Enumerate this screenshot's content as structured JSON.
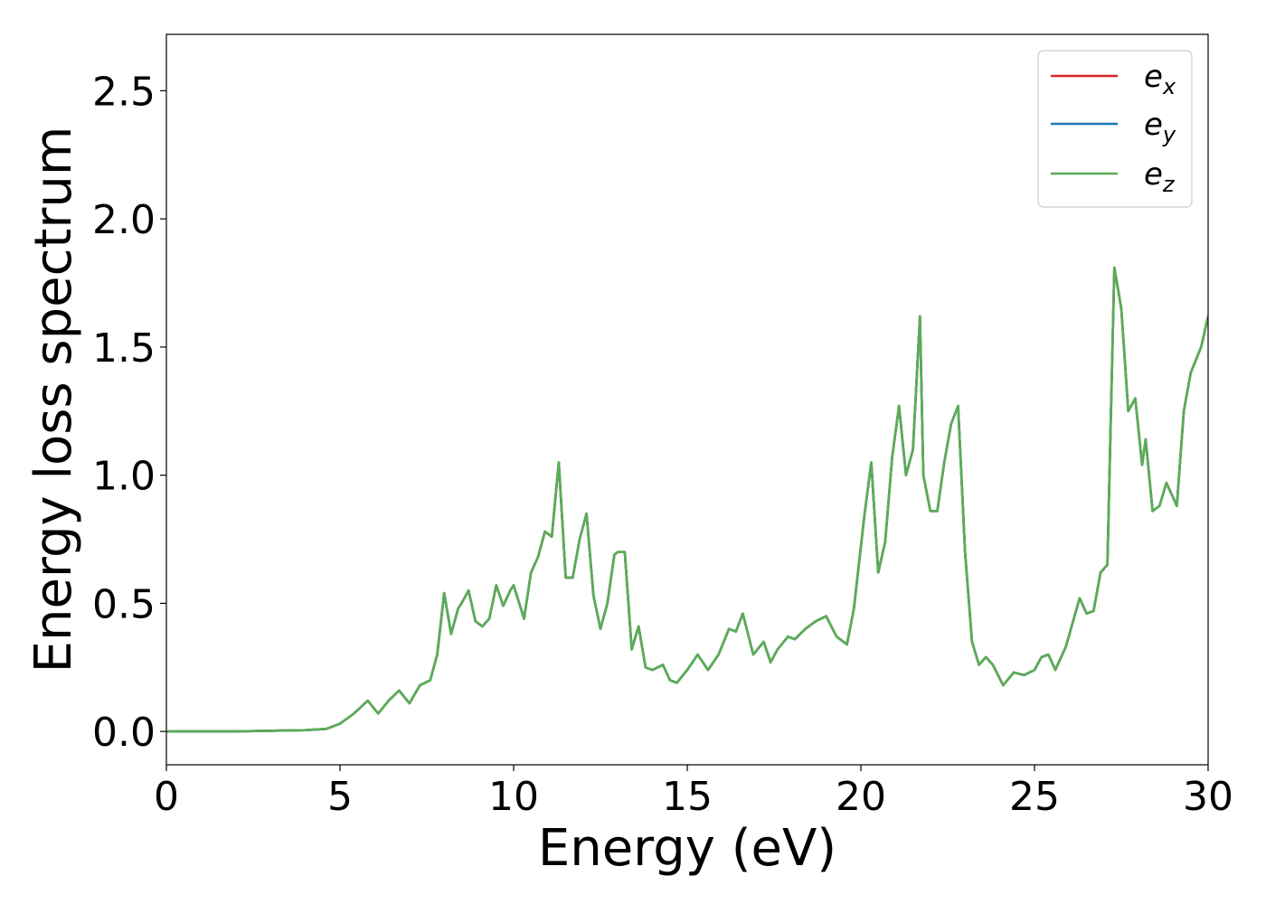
{
  "chart_data": {
    "type": "line",
    "xlabel": "Energy (eV)",
    "ylabel": "Energy loss spectrum",
    "xlim": [
      0,
      30
    ],
    "ylim": [
      -0.13,
      2.72
    ],
    "xticks": [
      0,
      5,
      10,
      15,
      20,
      25,
      30
    ],
    "xtick_labels": [
      "0",
      "5",
      "10",
      "15",
      "20",
      "25",
      "30"
    ],
    "yticks": [
      0.0,
      0.5,
      1.0,
      1.5,
      2.0,
      2.5
    ],
    "ytick_labels": [
      "0.0",
      "0.5",
      "1.0",
      "1.5",
      "2.0",
      "2.5"
    ],
    "grid": false,
    "legend_position": "top-right",
    "series": [
      {
        "name": "e_x",
        "legend_base": "e",
        "legend_sub": "x",
        "color": "#d62728",
        "x": [
          0,
          2,
          4,
          4.6,
          5,
          5.4,
          5.8,
          6.1,
          6.4,
          6.7,
          7,
          7.3,
          7.6,
          7.8,
          8,
          8.2,
          8.4,
          8.5,
          8.7,
          8.9,
          9.1,
          9.3,
          9.5,
          9.7,
          9.9,
          10,
          10.3,
          10.5,
          10.7,
          10.9,
          11.1,
          11.3,
          11.5,
          11.7,
          11.9,
          12.1,
          12.3,
          12.5,
          12.7,
          12.9,
          13,
          13.2,
          13.4,
          13.6,
          13.8,
          14,
          14.3,
          14.5,
          14.7,
          15,
          15.3,
          15.6,
          15.9,
          16.2,
          16.4,
          16.6,
          16.9,
          17.2,
          17.4,
          17.6,
          17.9,
          18.1,
          18.4,
          18.7,
          19,
          19.3,
          19.6,
          19.8,
          20.1,
          20.3,
          20.5,
          20.7,
          20.9,
          21.1,
          21.3,
          21.5,
          21.7,
          21.8,
          22,
          22.2,
          22.4,
          22.6,
          22.8,
          23,
          23.2,
          23.4,
          23.6,
          23.8,
          24.1,
          24.4,
          24.7,
          25,
          25.2,
          25.4,
          25.6,
          25.9,
          26.3,
          26.5,
          26.7,
          26.9,
          27.1,
          27.3,
          27.5,
          27.7,
          27.9,
          28.1,
          28.2,
          28.4,
          28.6,
          28.8,
          29.1,
          29.3,
          29.5,
          29.8,
          30
        ],
        "y": [
          0,
          0,
          0.005,
          0.01,
          0.03,
          0.07,
          0.12,
          0.07,
          0.12,
          0.16,
          0.11,
          0.18,
          0.2,
          0.3,
          0.54,
          0.38,
          0.48,
          0.5,
          0.55,
          0.43,
          0.41,
          0.44,
          0.57,
          0.49,
          0.55,
          0.57,
          0.44,
          0.62,
          0.68,
          0.78,
          0.76,
          1.05,
          0.6,
          0.6,
          0.75,
          0.85,
          0.53,
          0.4,
          0.5,
          0.69,
          0.7,
          0.7,
          0.32,
          0.41,
          0.25,
          0.24,
          0.26,
          0.2,
          0.19,
          0.24,
          0.3,
          0.24,
          0.3,
          0.4,
          0.39,
          0.46,
          0.3,
          0.35,
          0.27,
          0.32,
          0.37,
          0.36,
          0.4,
          0.43,
          0.45,
          0.37,
          0.34,
          0.48,
          0.84,
          1.05,
          0.62,
          0.74,
          1.07,
          1.27,
          1.0,
          1.1,
          1.62,
          1.0,
          0.86,
          0.86,
          1.05,
          1.2,
          1.27,
          0.7,
          0.35,
          0.26,
          0.29,
          0.26,
          0.18,
          0.23,
          0.22,
          0.24,
          0.29,
          0.3,
          0.24,
          0.33,
          0.52,
          0.46,
          0.47,
          0.62,
          0.65,
          1.81,
          1.65,
          1.25,
          1.3,
          1.04,
          1.14,
          0.86,
          0.88,
          0.97,
          0.88,
          1.25,
          1.4,
          1.5,
          1.62
        ]
      },
      {
        "name": "e_y",
        "legend_base": "e",
        "legend_sub": "y",
        "color": "#1f77b4",
        "x": [
          0,
          2,
          4,
          4.6,
          5,
          5.4,
          5.8,
          6.1,
          6.4,
          6.7,
          7,
          7.3,
          7.6,
          7.8,
          8,
          8.2,
          8.4,
          8.5,
          8.7,
          8.9,
          9.1,
          9.3,
          9.5,
          9.7,
          9.9,
          10,
          10.3,
          10.5,
          10.7,
          10.9,
          11.1,
          11.3,
          11.5,
          11.7,
          11.9,
          12.1,
          12.3,
          12.5,
          12.7,
          12.9,
          13,
          13.2,
          13.4,
          13.6,
          13.8,
          14,
          14.3,
          14.5,
          14.7,
          15,
          15.3,
          15.6,
          15.9,
          16.2,
          16.4,
          16.6,
          16.9,
          17.2,
          17.4,
          17.6,
          17.9,
          18.1,
          18.4,
          18.7,
          19,
          19.3,
          19.6,
          19.8,
          20.1,
          20.3,
          20.5,
          20.7,
          20.9,
          21.1,
          21.3,
          21.5,
          21.7,
          21.8,
          22,
          22.2,
          22.4,
          22.6,
          22.8,
          23,
          23.2,
          23.4,
          23.6,
          23.8,
          24.1,
          24.4,
          24.7,
          25,
          25.2,
          25.4,
          25.6,
          25.9,
          26.3,
          26.5,
          26.7,
          26.9,
          27.1,
          27.3,
          27.5,
          27.7,
          27.9,
          28.1,
          28.2,
          28.4,
          28.6,
          28.8,
          29.1,
          29.3,
          29.5,
          29.8,
          30
        ],
        "y": [
          0,
          0,
          0.005,
          0.01,
          0.03,
          0.07,
          0.12,
          0.07,
          0.12,
          0.16,
          0.11,
          0.18,
          0.2,
          0.3,
          0.54,
          0.38,
          0.48,
          0.5,
          0.55,
          0.43,
          0.41,
          0.44,
          0.57,
          0.49,
          0.55,
          0.57,
          0.44,
          0.62,
          0.68,
          0.78,
          0.76,
          1.05,
          0.6,
          0.6,
          0.75,
          0.85,
          0.53,
          0.4,
          0.5,
          0.69,
          0.7,
          0.7,
          0.32,
          0.41,
          0.25,
          0.24,
          0.26,
          0.2,
          0.19,
          0.24,
          0.3,
          0.24,
          0.3,
          0.4,
          0.39,
          0.46,
          0.3,
          0.35,
          0.27,
          0.32,
          0.37,
          0.36,
          0.4,
          0.43,
          0.45,
          0.37,
          0.34,
          0.48,
          0.84,
          1.05,
          0.62,
          0.74,
          1.07,
          1.27,
          1.0,
          1.1,
          1.62,
          1.0,
          0.86,
          0.86,
          1.05,
          1.2,
          1.27,
          0.7,
          0.35,
          0.26,
          0.29,
          0.26,
          0.18,
          0.23,
          0.22,
          0.24,
          0.29,
          0.3,
          0.24,
          0.33,
          0.52,
          0.46,
          0.47,
          0.62,
          0.65,
          1.81,
          1.65,
          1.25,
          1.3,
          1.04,
          1.14,
          0.86,
          0.88,
          0.97,
          0.88,
          1.25,
          1.4,
          1.5,
          1.62
        ]
      },
      {
        "name": "e_z",
        "legend_base": "e",
        "legend_sub": "z",
        "color": "#5aad54",
        "x": [
          0,
          2,
          4,
          4.6,
          5,
          5.4,
          5.8,
          6.1,
          6.4,
          6.7,
          7,
          7.3,
          7.6,
          7.8,
          8,
          8.2,
          8.4,
          8.5,
          8.7,
          8.9,
          9.1,
          9.3,
          9.5,
          9.7,
          9.9,
          10,
          10.3,
          10.5,
          10.7,
          10.9,
          11.1,
          11.3,
          11.5,
          11.7,
          11.9,
          12.1,
          12.3,
          12.5,
          12.7,
          12.9,
          13,
          13.2,
          13.4,
          13.6,
          13.8,
          14,
          14.3,
          14.5,
          14.7,
          15,
          15.3,
          15.6,
          15.9,
          16.2,
          16.4,
          16.6,
          16.9,
          17.2,
          17.4,
          17.6,
          17.9,
          18.1,
          18.4,
          18.7,
          19,
          19.3,
          19.6,
          19.8,
          20.1,
          20.3,
          20.5,
          20.7,
          20.9,
          21.1,
          21.3,
          21.5,
          21.7,
          21.8,
          22,
          22.2,
          22.4,
          22.6,
          22.8,
          23,
          23.2,
          23.4,
          23.6,
          23.8,
          24.1,
          24.4,
          24.7,
          25,
          25.2,
          25.4,
          25.6,
          25.9,
          26.3,
          26.5,
          26.7,
          26.9,
          27.1,
          27.3,
          27.5,
          27.7,
          27.9,
          28.1,
          28.2,
          28.4,
          28.6,
          28.8,
          29.1,
          29.3,
          29.5,
          29.8,
          30
        ],
        "y": [
          0,
          0,
          0.005,
          0.01,
          0.03,
          0.07,
          0.12,
          0.07,
          0.12,
          0.16,
          0.11,
          0.18,
          0.2,
          0.3,
          0.54,
          0.38,
          0.48,
          0.5,
          0.55,
          0.43,
          0.41,
          0.44,
          0.57,
          0.49,
          0.55,
          0.57,
          0.44,
          0.62,
          0.68,
          0.78,
          0.76,
          1.05,
          0.6,
          0.6,
          0.75,
          0.85,
          0.53,
          0.4,
          0.5,
          0.69,
          0.7,
          0.7,
          0.32,
          0.41,
          0.25,
          0.24,
          0.26,
          0.2,
          0.19,
          0.24,
          0.3,
          0.24,
          0.3,
          0.4,
          0.39,
          0.46,
          0.3,
          0.35,
          0.27,
          0.32,
          0.37,
          0.36,
          0.4,
          0.43,
          0.45,
          0.37,
          0.34,
          0.48,
          0.84,
          1.05,
          0.62,
          0.74,
          1.07,
          1.27,
          1.0,
          1.1,
          1.62,
          1.0,
          0.86,
          0.86,
          1.05,
          1.2,
          1.27,
          0.7,
          0.35,
          0.26,
          0.29,
          0.26,
          0.18,
          0.23,
          0.22,
          0.24,
          0.29,
          0.3,
          0.24,
          0.33,
          0.52,
          0.46,
          0.47,
          0.62,
          0.65,
          1.81,
          1.65,
          1.25,
          1.3,
          1.04,
          1.14,
          0.86,
          0.88,
          0.97,
          0.88,
          1.25,
          1.4,
          1.5,
          1.62
        ]
      }
    ]
  }
}
